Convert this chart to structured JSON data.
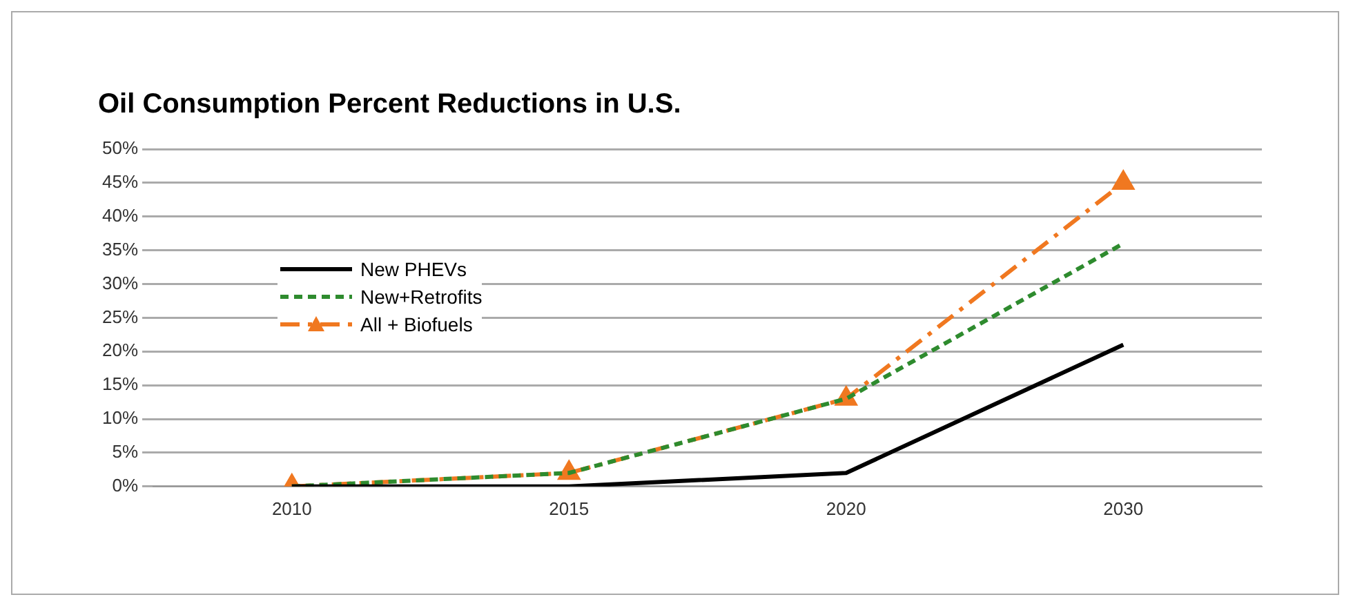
{
  "chart_data": {
    "type": "line",
    "title": "Oil Consumption Percent Reductions in U.S.",
    "categories": [
      "2010",
      "2015",
      "2020",
      "2030"
    ],
    "series": [
      {
        "name": "New PHEVs",
        "color": "#000000",
        "values": [
          0,
          0,
          2,
          21
        ],
        "line_style": "solid",
        "marker": "none"
      },
      {
        "name": "New+Retrofits",
        "color": "#2e8b2e",
        "values": [
          0,
          2,
          13,
          36
        ],
        "line_style": "dashed",
        "marker": "none"
      },
      {
        "name": "All + Biofuels",
        "color": "#f07820",
        "values": [
          0,
          2,
          13,
          45
        ],
        "line_style": "dashed",
        "marker": "triangle"
      }
    ],
    "ylim": [
      0,
      50
    ],
    "yticks": [
      {
        "value": 0,
        "label": "0%"
      },
      {
        "value": 5,
        "label": "5%"
      },
      {
        "value": 10,
        "label": "10%"
      },
      {
        "value": 15,
        "label": "15%"
      },
      {
        "value": 20,
        "label": "20%"
      },
      {
        "value": 25,
        "label": "25%"
      },
      {
        "value": 30,
        "label": "30%"
      },
      {
        "value": 35,
        "label": "35%"
      },
      {
        "value": 40,
        "label": "40%"
      },
      {
        "value": 45,
        "label": "45%"
      },
      {
        "value": 50,
        "label": "50%"
      }
    ],
    "grid": "y",
    "legend": "left"
  }
}
